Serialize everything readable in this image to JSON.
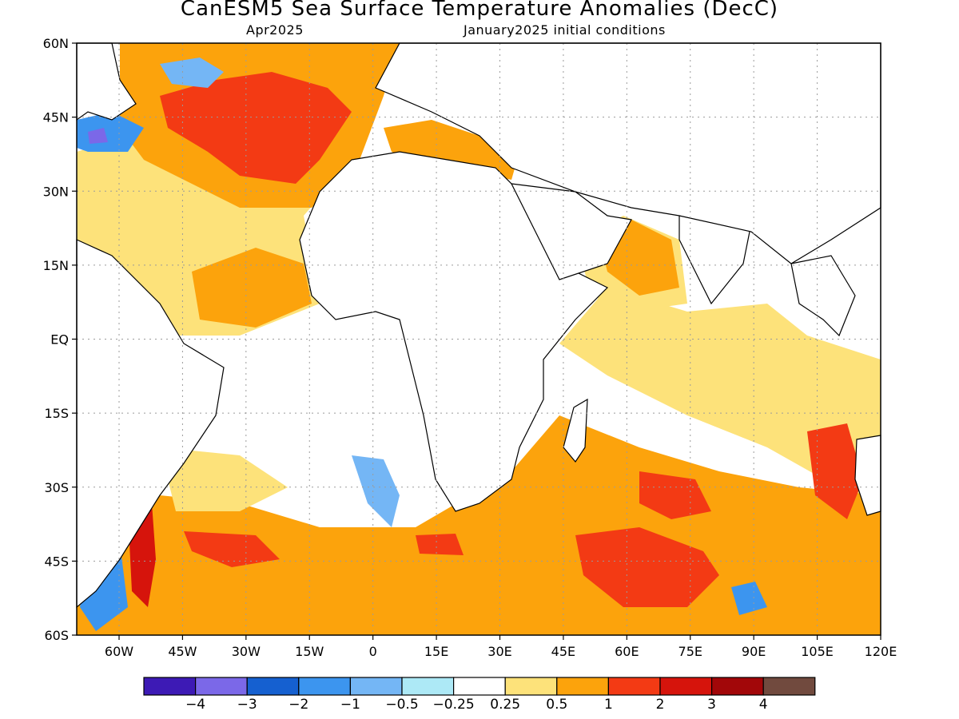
{
  "title": "CanESM5 Sea Surface Temperature Anomalies (DecC)",
  "subtitle_left": "Apr2025",
  "subtitle_right": "January2025 initial conditions",
  "lat_ticks": [
    "60N",
    "45N",
    "30N",
    "15N",
    "EQ",
    "15S",
    "30S",
    "45S",
    "60S"
  ],
  "lon_ticks": [
    "60W",
    "45W",
    "30W",
    "15W",
    "0",
    "15E",
    "30E",
    "45E",
    "60E",
    "75E",
    "90E",
    "105E",
    "120E"
  ],
  "colorbar": {
    "colors": [
      "#3d1ab5",
      "#7b68e8",
      "#1560d0",
      "#3c95ef",
      "#74b6f5",
      "#ade9f6",
      "#ffffff",
      "#fde27a",
      "#fca30c",
      "#f33a14",
      "#d6140c",
      "#a20709",
      "#714a3e"
    ],
    "labels": [
      "−4",
      "−3",
      "−2",
      "−1",
      "−0.5",
      "−0.25",
      "0.25",
      "0.5",
      "1",
      "2",
      "3",
      "4"
    ]
  },
  "regions": [
    {
      "name": "north-atlantic-warm-tongue",
      "level": "1 to 2"
    },
    {
      "name": "south-atlantic-south-indian-warm-band",
      "level": "0.5 to 2"
    },
    {
      "name": "tropical-indian-ocean",
      "level": "0.25 to 0.5"
    },
    {
      "name": "brazil-current-warm-streak",
      "level": "2 to 3"
    },
    {
      "name": "newfoundland-cold-patch",
      "level": "-2 to -4"
    }
  ]
}
